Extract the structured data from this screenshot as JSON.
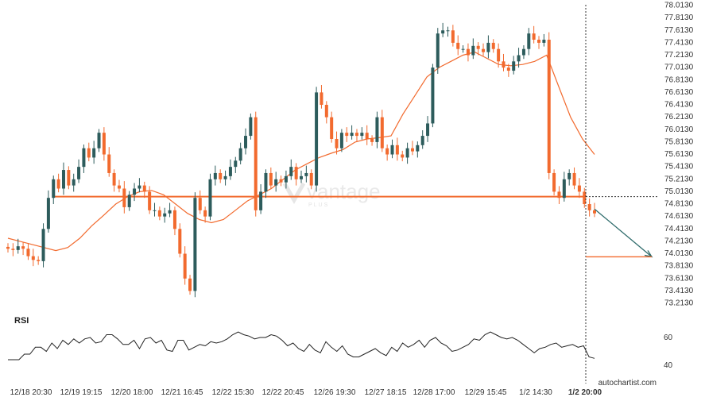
{
  "chart_data": {
    "type": "candlestick",
    "y_axis": {
      "position": "right",
      "range": [
        73.05,
        78.05
      ],
      "ticks": [
        "78.0130",
        "77.8130",
        "77.6130",
        "77.4130",
        "77.2130",
        "77.0130",
        "76.8130",
        "76.6130",
        "76.4130",
        "76.2130",
        "76.0130",
        "75.8130",
        "75.6130",
        "75.4130",
        "75.2130",
        "75.0130",
        "74.8130",
        "74.6130",
        "74.4130",
        "74.2130",
        "74.0130",
        "73.8130",
        "73.6130",
        "73.4130",
        "73.2130"
      ]
    },
    "x_axis": {
      "ticks": [
        "12/18 20:30",
        "12/19 19:15",
        "12/20 18:00",
        "12/21 16:45",
        "12/22 15:30",
        "12/22 20:45",
        "12/26 19:30",
        "12/27 18:15",
        "12/28 17:00",
        "12/29 15:45",
        "1/2 14:30",
        "1/2 20:00"
      ],
      "highlighted_tick": "1/2 20:00"
    },
    "series_close": [
      74.08,
      74.06,
      74.12,
      74.08,
      73.96,
      73.9,
      73.88,
      74.4,
      74.9,
      75.2,
      75.05,
      75.35,
      75.1,
      75.2,
      75.4,
      75.7,
      75.55,
      75.7,
      75.95,
      75.6,
      75.3,
      75.1,
      75.05,
      74.75,
      74.95,
      75.05,
      75.1,
      75.0,
      74.7,
      74.7,
      74.6,
      74.65,
      74.7,
      74.4,
      74.0,
      73.6,
      73.4,
      74.9,
      74.7,
      74.6,
      75.2,
      75.3,
      75.2,
      75.25,
      75.4,
      75.5,
      75.7,
      75.9,
      76.2,
      74.7,
      75.0,
      75.3,
      75.1,
      75.2,
      75.15,
      75.25,
      75.4,
      75.2,
      75.25,
      75.3,
      75.1,
      76.6,
      76.4,
      76.2,
      75.85,
      75.7,
      75.95,
      75.9,
      75.95,
      75.9,
      75.95,
      75.85,
      75.8,
      76.2,
      75.7,
      75.6,
      75.75,
      75.6,
      75.55,
      75.7,
      75.65,
      75.75,
      75.9,
      76.1,
      77.0,
      77.55,
      77.6,
      77.6,
      77.4,
      77.3,
      77.3,
      77.2,
      77.35,
      77.3,
      77.25,
      77.4,
      77.3,
      77.1,
      77.0,
      76.95,
      77.1,
      77.2,
      77.3,
      77.55,
      77.45,
      77.4,
      77.45,
      75.3,
      75.0,
      74.9,
      75.2,
      75.3,
      75.1,
      75.0,
      74.8,
      74.7,
      74.65
    ],
    "moving_average": [
      74.25,
      74.2,
      74.15,
      74.1,
      74.05,
      74.1,
      74.25,
      74.45,
      74.62,
      74.8,
      74.92,
      75.0,
      75.02,
      74.95,
      74.8,
      74.65,
      74.55,
      74.5,
      74.55,
      74.7,
      74.85,
      74.95,
      75.05,
      75.2,
      75.35,
      75.45,
      75.55,
      75.62,
      75.68,
      75.8,
      75.85,
      75.87,
      75.9,
      76.25,
      76.55,
      76.85,
      77.0,
      77.1,
      77.2,
      77.25,
      77.15,
      77.05,
      77.03,
      77.05,
      77.1,
      77.2,
      76.7,
      76.2,
      75.85,
      75.6
    ],
    "support_level": 74.92,
    "forecast_arrow": {
      "from": 74.72,
      "to": 73.95
    },
    "target_level": 73.95,
    "rsi": {
      "title": "RSI",
      "levels": [
        "60",
        "40"
      ],
      "values": [
        44,
        44,
        44,
        48,
        48,
        53,
        53,
        50,
        56,
        52,
        58,
        55,
        59,
        56,
        59,
        60,
        56,
        57,
        62,
        62,
        59,
        55,
        55,
        58,
        52,
        59,
        60,
        56,
        58,
        51,
        50,
        58,
        58,
        51,
        53,
        55,
        54,
        57,
        56,
        57,
        59,
        62,
        64,
        62,
        61,
        59,
        60,
        60,
        62,
        61,
        58,
        54,
        56,
        52,
        50,
        55,
        51,
        49,
        57,
        53,
        50,
        54,
        48,
        46,
        46,
        48,
        50,
        52,
        49,
        47,
        53,
        50,
        56,
        53,
        55,
        58,
        53,
        58,
        60,
        56,
        54,
        50,
        51,
        53,
        55,
        59,
        58,
        62,
        64,
        62,
        60,
        59,
        60,
        58,
        55,
        52,
        49,
        52,
        53,
        55,
        56,
        53,
        54,
        55,
        53,
        54,
        46,
        45
      ]
    },
    "watermark": {
      "brand": "vantage",
      "sub": "PLUS"
    }
  },
  "footer": {
    "credit": "autochartist.com"
  }
}
